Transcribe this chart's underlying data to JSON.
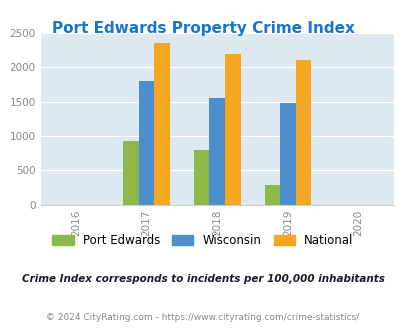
{
  "title": "Port Edwards Property Crime Index",
  "title_color": "#1874CD",
  "years": [
    2016,
    2017,
    2018,
    2019,
    2020
  ],
  "bar_years": [
    2017,
    2018,
    2019
  ],
  "port_edwards": [
    930,
    800,
    280
  ],
  "wisconsin": [
    1800,
    1560,
    1480
  ],
  "national": [
    2350,
    2200,
    2100
  ],
  "bar_colors": {
    "port_edwards": "#8db84a",
    "wisconsin": "#4d8fcc",
    "national": "#f5a623"
  },
  "ylim": [
    0,
    2500
  ],
  "yticks": [
    0,
    500,
    1000,
    1500,
    2000,
    2500
  ],
  "bg_color": "#dce9f0",
  "legend_labels": [
    "Port Edwards",
    "Wisconsin",
    "National"
  ],
  "note": "Crime Index corresponds to incidents per 100,000 inhabitants",
  "note_color": "#1a1a2e",
  "footer": "© 2024 CityRating.com - https://www.cityrating.com/crime-statistics/",
  "footer_color": "#888888",
  "bar_width": 0.22
}
